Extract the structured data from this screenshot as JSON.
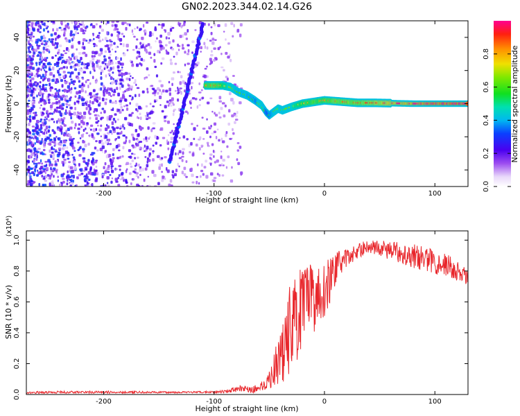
{
  "title": "GN02.2023.344.02.14.G26",
  "colors": {
    "speckle": "#5a10f0",
    "ridge_core": "#ff2a4a",
    "snr_line": "#e8262b",
    "axis": "#000000"
  },
  "chart_data": [
    {
      "type": "heatmap",
      "xlabel": "Height of straight line (km)",
      "ylabel": "Frequency (Hz)",
      "xlim": [
        -270,
        130
      ],
      "ylim": [
        -50,
        50
      ],
      "xticks": [
        -200,
        -100,
        0,
        100
      ],
      "yticks": [
        -40,
        -20,
        0,
        20,
        40
      ],
      "colorbar": {
        "label": "Normalized spectral amplitude",
        "range": [
          0,
          1
        ],
        "ticks": [
          0.0,
          0.2,
          0.4,
          0.6,
          0.8
        ]
      },
      "features": [
        {
          "kind": "noise_speckle",
          "x_range": [
            -270,
            -75
          ],
          "y_range": [
            -50,
            50
          ],
          "level": 0.2
        },
        {
          "kind": "streak",
          "x": [
            -140,
            -110
          ],
          "y": [
            -35,
            48
          ],
          "level": 0.25
        },
        {
          "kind": "ridge",
          "x": [
            -108,
            -100,
            -92,
            -85,
            -78,
            -70,
            -63,
            -57,
            -53,
            -50,
            -46,
            -42,
            -38,
            -30,
            -20,
            -10,
            0,
            10,
            20,
            30,
            45,
            60,
            80,
            100,
            130
          ],
          "y": [
            11,
            11,
            11,
            10,
            7,
            5,
            2,
            -1,
            -5,
            -7,
            -5,
            -3,
            -4,
            -2,
            0,
            1,
            2,
            1.5,
            1,
            0.5,
            0.5,
            0.3,
            0,
            0,
            0
          ],
          "level": [
            0.7,
            0.75,
            0.65,
            0.55,
            0.5,
            0.5,
            0.45,
            0.55,
            0.45,
            0.4,
            0.5,
            0.55,
            0.5,
            0.55,
            0.65,
            0.7,
            0.7,
            0.75,
            0.75,
            0.75,
            0.8,
            0.85,
            0.9,
            0.95,
            0.95
          ]
        }
      ]
    },
    {
      "type": "line",
      "xlabel": "Height of straight line (km)",
      "ylabel": "SNR (10 * v/v)",
      "y_multiplier": "(x10⁴)",
      "xlim": [
        -270,
        130
      ],
      "ylim": [
        0,
        1.06
      ],
      "xticks": [
        -200,
        -100,
        0,
        100
      ],
      "yticks": [
        0.0,
        0.2,
        0.4,
        0.6,
        0.8,
        1.0
      ],
      "series": [
        {
          "x": [
            -270,
            -240,
            -200,
            -150,
            -110,
            -90,
            -75,
            -65,
            -55,
            -48,
            -42,
            -35,
            -30,
            -25,
            -20,
            -15,
            -10,
            -5,
            0,
            5,
            10,
            15,
            20,
            30,
            40,
            50,
            60,
            70,
            80,
            90,
            100,
            110,
            120,
            130
          ],
          "y": [
            0.012,
            0.015,
            0.015,
            0.014,
            0.015,
            0.02,
            0.04,
            0.03,
            0.06,
            0.12,
            0.22,
            0.35,
            0.45,
            0.5,
            0.55,
            0.6,
            0.62,
            0.65,
            0.68,
            0.74,
            0.82,
            0.86,
            0.88,
            0.93,
            0.96,
            0.95,
            0.93,
            0.92,
            0.9,
            0.88,
            0.86,
            0.84,
            0.8,
            0.75
          ],
          "noise": [
            0.006,
            0.008,
            0.008,
            0.006,
            0.006,
            0.01,
            0.02,
            0.02,
            0.04,
            0.08,
            0.15,
            0.3,
            0.3,
            0.3,
            0.28,
            0.25,
            0.22,
            0.2,
            0.18,
            0.15,
            0.1,
            0.08,
            0.06,
            0.05,
            0.04,
            0.05,
            0.06,
            0.07,
            0.08,
            0.08,
            0.08,
            0.08,
            0.07,
            0.06
          ]
        }
      ]
    }
  ]
}
